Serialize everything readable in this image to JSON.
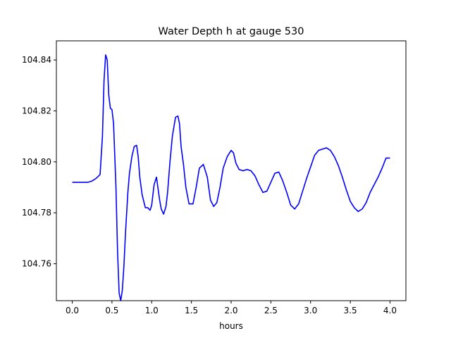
{
  "chart_data": {
    "type": "line",
    "title": "Water Depth h at gauge 530",
    "xlabel": "hours",
    "ylabel": "",
    "xlim": [
      -0.2,
      4.2
    ],
    "ylim": [
      104.7455,
      104.8475
    ],
    "xticks": [
      0.0,
      0.5,
      1.0,
      1.5,
      2.0,
      2.5,
      3.0,
      3.5,
      4.0
    ],
    "xtick_labels": [
      "0.0",
      "0.5",
      "1.0",
      "1.5",
      "2.0",
      "2.5",
      "3.0",
      "3.5",
      "4.0"
    ],
    "yticks": [
      104.76,
      104.78,
      104.8,
      104.82,
      104.84
    ],
    "ytick_labels": [
      "104.76",
      "104.78",
      "104.80",
      "104.82",
      "104.84"
    ],
    "grid": false,
    "series": [
      {
        "color": "#0000ff",
        "x": [
          0.0,
          0.1,
          0.2,
          0.25,
          0.3,
          0.35,
          0.38,
          0.4,
          0.42,
          0.44,
          0.46,
          0.48,
          0.5,
          0.52,
          0.55,
          0.57,
          0.59,
          0.61,
          0.63,
          0.65,
          0.67,
          0.7,
          0.72,
          0.75,
          0.78,
          0.81,
          0.83,
          0.85,
          0.88,
          0.92,
          0.95,
          0.98,
          1.0,
          1.03,
          1.06,
          1.1,
          1.12,
          1.15,
          1.18,
          1.2,
          1.23,
          1.26,
          1.3,
          1.33,
          1.35,
          1.37,
          1.4,
          1.43,
          1.47,
          1.52,
          1.56,
          1.6,
          1.65,
          1.7,
          1.74,
          1.78,
          1.82,
          1.86,
          1.9,
          1.95,
          2.0,
          2.03,
          2.06,
          2.1,
          2.15,
          2.2,
          2.25,
          2.3,
          2.35,
          2.4,
          2.45,
          2.5,
          2.55,
          2.6,
          2.65,
          2.7,
          2.75,
          2.8,
          2.85,
          2.9,
          2.95,
          3.0,
          3.05,
          3.1,
          3.15,
          3.2,
          3.25,
          3.3,
          3.35,
          3.4,
          3.45,
          3.5,
          3.55,
          3.6,
          3.65,
          3.7,
          3.75,
          3.8,
          3.85,
          3.9,
          3.95,
          4.0
        ],
        "y": [
          104.792,
          104.792,
          104.792,
          104.7925,
          104.7935,
          104.795,
          104.81,
          104.832,
          104.842,
          104.84,
          104.826,
          104.821,
          104.8205,
          104.815,
          104.79,
          104.765,
          104.7485,
          104.7455,
          104.7495,
          104.759,
          104.772,
          104.788,
          104.7955,
          104.802,
          104.806,
          104.8065,
          104.802,
          104.794,
          104.787,
          104.782,
          104.782,
          104.781,
          104.783,
          104.791,
          104.794,
          104.785,
          104.7815,
          104.7795,
          104.7825,
          104.788,
          104.8,
          104.81,
          104.8175,
          104.818,
          104.815,
          104.806,
          104.799,
          104.79,
          104.7835,
          104.7835,
          104.79,
          104.7975,
          104.799,
          104.794,
          104.785,
          104.7825,
          104.784,
          104.79,
          104.7975,
          104.802,
          104.8045,
          104.8035,
          104.7995,
          104.797,
          104.7965,
          104.797,
          104.7965,
          104.7945,
          104.791,
          104.788,
          104.7885,
          104.792,
          104.7955,
          104.796,
          104.7925,
          104.788,
          104.783,
          104.7815,
          104.7835,
          104.7885,
          104.7935,
          104.798,
          104.8025,
          104.8045,
          104.805,
          104.8055,
          104.8045,
          104.802,
          104.7985,
          104.794,
          104.789,
          104.7845,
          104.782,
          104.7805,
          104.7815,
          104.784,
          104.788,
          104.791,
          104.794,
          104.7975,
          104.8015,
          104.8015
        ]
      }
    ]
  }
}
